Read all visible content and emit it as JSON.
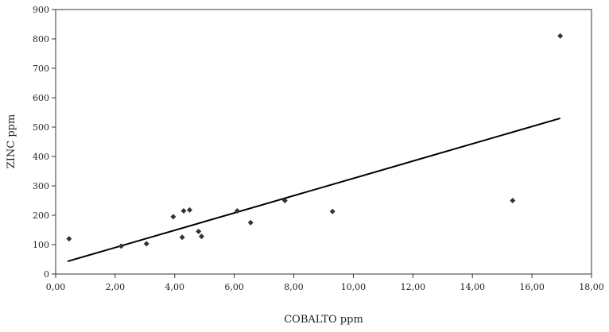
{
  "chart_data": {
    "type": "scatter",
    "title": "",
    "xlabel": "COBALTO ppm",
    "ylabel": "ZINC ppm",
    "xlim": [
      0,
      18
    ],
    "ylim": [
      0,
      900
    ],
    "x_ticks": [
      0,
      2,
      4,
      6,
      8,
      10,
      12,
      14,
      16,
      18
    ],
    "x_tick_labels": [
      "0,00",
      "2,00",
      "4,00",
      "6,00",
      "8,00",
      "10,00",
      "12,00",
      "14,00",
      "16,00",
      "18,00"
    ],
    "y_ticks": [
      0,
      100,
      200,
      300,
      400,
      500,
      600,
      700,
      800,
      900
    ],
    "y_tick_labels": [
      "0",
      "100",
      "200",
      "300",
      "400",
      "500",
      "600",
      "700",
      "800",
      "900"
    ],
    "grid": false,
    "legend": "none",
    "series": [
      {
        "marker": "diamond",
        "color": "#333333",
        "points": [
          {
            "x": 0.45,
            "y": 120
          },
          {
            "x": 2.2,
            "y": 95
          },
          {
            "x": 3.05,
            "y": 103
          },
          {
            "x": 3.95,
            "y": 195
          },
          {
            "x": 4.25,
            "y": 125
          },
          {
            "x": 4.3,
            "y": 215
          },
          {
            "x": 4.5,
            "y": 218
          },
          {
            "x": 4.8,
            "y": 145
          },
          {
            "x": 4.9,
            "y": 128
          },
          {
            "x": 6.1,
            "y": 215
          },
          {
            "x": 6.55,
            "y": 175
          },
          {
            "x": 7.7,
            "y": 250
          },
          {
            "x": 9.3,
            "y": 213
          },
          {
            "x": 15.35,
            "y": 250
          },
          {
            "x": 16.95,
            "y": 810
          }
        ]
      }
    ],
    "trendline": {
      "type": "linear",
      "color": "#000000",
      "x": [
        0.4,
        16.95
      ],
      "y": [
        43,
        530
      ]
    }
  }
}
